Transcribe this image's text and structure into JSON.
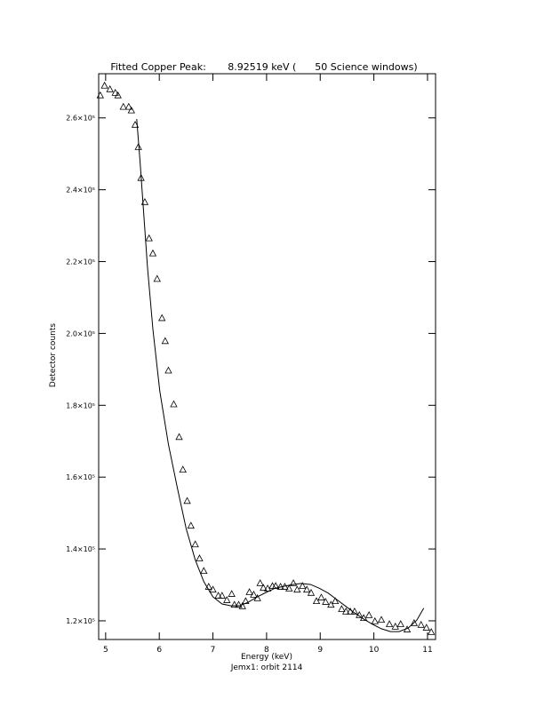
{
  "chart_data": {
    "type": "scatter",
    "title": "Fitted Copper Peak:       8.92519 keV (      50 Science windows)",
    "xlabel": "Energy (keV)",
    "subtitle": "Jemx1: orbit 2114",
    "ylabel": "Detector counts",
    "xlim": [
      4.87,
      11.15
    ],
    "ylim": [
      114800,
      272300
    ],
    "xticks": [
      5,
      6,
      7,
      8,
      9,
      10,
      11
    ],
    "yticks": [
      {
        "value": 120000,
        "label": "1.2×10⁵"
      },
      {
        "value": 140000,
        "label": "1.4×10⁵"
      },
      {
        "value": 160000,
        "label": "1.6×10⁵"
      },
      {
        "value": 180000,
        "label": "1.8×10⁵"
      },
      {
        "value": 200000,
        "label": "2.0×10⁵"
      },
      {
        "value": 220000,
        "label": "2.2×10⁵"
      },
      {
        "value": 240000,
        "label": "2.4×10⁵"
      },
      {
        "value": 260000,
        "label": "2.6×10⁵"
      }
    ],
    "series": [
      {
        "marker": "triangle",
        "color": "#000000",
        "x": [
          4.9,
          4.98,
          5.08,
          5.18,
          5.23,
          5.33,
          5.43,
          5.48,
          5.55,
          5.61,
          5.66,
          5.73,
          5.81,
          5.88,
          5.96,
          6.05,
          6.11,
          6.17,
          6.27,
          6.37,
          6.44,
          6.52,
          6.59,
          6.67,
          6.75,
          6.83,
          6.92,
          7.0,
          7.1,
          7.17,
          7.26,
          7.35,
          7.4,
          7.48,
          7.55,
          7.61,
          7.68,
          7.76,
          7.83,
          7.88,
          7.94,
          8.02,
          8.11,
          8.17,
          8.26,
          8.34,
          8.42,
          8.5,
          8.57,
          8.67,
          8.75,
          8.83,
          8.93,
          9.02,
          9.1,
          9.2,
          9.28,
          9.4,
          9.48,
          9.56,
          9.64,
          9.73,
          9.81,
          9.91,
          10.02,
          10.14,
          10.29,
          10.4,
          10.5,
          10.62,
          10.75,
          10.88,
          10.98,
          11.07
        ],
        "values": [
          266200,
          268900,
          267900,
          266900,
          266200,
          263000,
          263000,
          262000,
          258000,
          251800,
          243200,
          236500,
          226400,
          222200,
          215100,
          204200,
          197800,
          189600,
          180200,
          171100,
          162000,
          153300,
          146400,
          141200,
          137300,
          133800,
          129400,
          128600,
          126900,
          126900,
          125700,
          127400,
          124400,
          124400,
          124000,
          125400,
          127900,
          127200,
          126200,
          130400,
          129100,
          128900,
          129600,
          129600,
          129400,
          129400,
          128900,
          130400,
          128600,
          129600,
          128600,
          127700,
          125400,
          126400,
          125200,
          124400,
          125400,
          123200,
          122500,
          122500,
          122500,
          121500,
          120700,
          121500,
          119800,
          120200,
          119000,
          118300,
          119000,
          117500,
          119300,
          118800,
          118000,
          116800
        ]
      },
      {
        "marker": "line",
        "color": "#000000",
        "x": [
          5.58,
          5.64,
          5.71,
          5.78,
          5.88,
          6.01,
          6.17,
          6.34,
          6.5,
          6.67,
          6.83,
          7.0,
          7.17,
          7.33,
          7.5,
          7.66,
          7.83,
          7.99,
          8.16,
          8.32,
          8.49,
          8.65,
          8.82,
          8.98,
          9.15,
          9.31,
          9.48,
          9.64,
          9.81,
          9.98,
          10.14,
          10.31,
          10.47,
          10.64,
          10.8,
          10.93
        ],
        "values": [
          259700,
          248100,
          233300,
          218500,
          201200,
          183900,
          169100,
          156800,
          145700,
          137000,
          130900,
          126700,
          124700,
          124200,
          124200,
          125200,
          126700,
          127900,
          129100,
          129600,
          130100,
          130400,
          130100,
          129100,
          127700,
          125900,
          124000,
          122200,
          120500,
          119000,
          117800,
          117000,
          117000,
          118000,
          120200,
          123500
        ]
      }
    ]
  }
}
